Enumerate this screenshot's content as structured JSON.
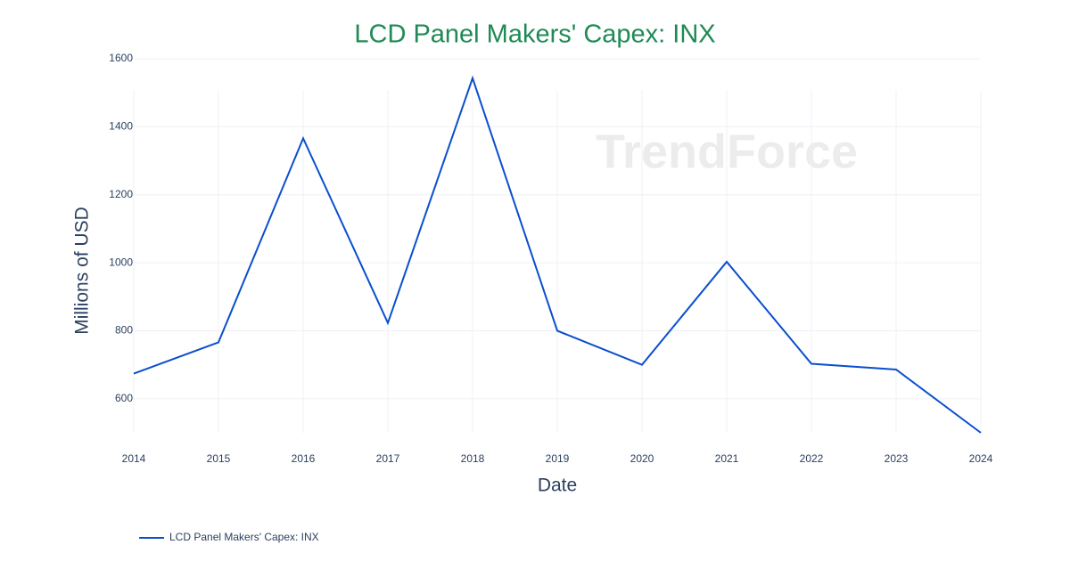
{
  "chart_data": {
    "type": "line",
    "title": "LCD Panel Makers' Capex: INX",
    "x_label": "Date",
    "y_label": "Millions of USD",
    "watermark": "TrendForce",
    "x": [
      2014,
      2015,
      2016,
      2017,
      2018,
      2019,
      2020,
      2021,
      2022,
      2023,
      2024
    ],
    "series": [
      {
        "name": "LCD Panel Makers' Capex: INX",
        "color": "#0a4fce",
        "values": [
          674,
          766,
          1366,
          823,
          1543,
          800,
          700,
          1003,
          703,
          686,
          500
        ]
      }
    ],
    "xlim": [
      2014,
      2024
    ],
    "xticks": [
      2014,
      2015,
      2016,
      2017,
      2018,
      2019,
      2020,
      2021,
      2022,
      2023,
      2024
    ],
    "ylim": [
      500,
      1600
    ],
    "yticks": [
      600,
      800,
      1000,
      1200,
      1400,
      1600
    ],
    "grid": true,
    "legend": "bottom-left"
  }
}
